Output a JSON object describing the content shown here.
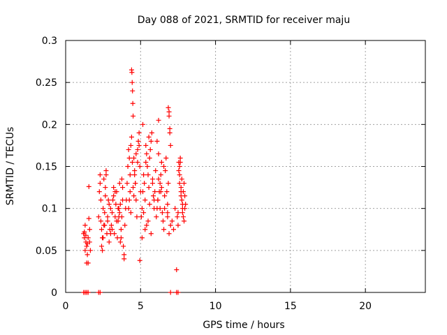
{
  "chart_data": {
    "type": "scatter",
    "title": "Day 088 of 2021, SRMTID for receiver maju",
    "xlabel": "GPS time / hours",
    "ylabel": "SRMTID / TECUs",
    "xlim": [
      0,
      24
    ],
    "ylim": [
      0,
      0.3
    ],
    "xticks": [
      0,
      5,
      10,
      15,
      20
    ],
    "xtick_labels": [
      "0",
      "5",
      "10",
      "15",
      "20"
    ],
    "yticks": [
      0,
      0.05,
      0.1,
      0.15,
      0.2,
      0.25,
      0.3
    ],
    "ytick_labels": [
      "0",
      "0.05",
      "0.1",
      "0.15",
      "0.2",
      "0.25",
      "0.3"
    ],
    "grid": true,
    "marker": "+",
    "color": "#ff0000",
    "series": [
      {
        "name": "SRMTID",
        "x": [
          1.2,
          1.25,
          1.3,
          1.35,
          1.4,
          1.45,
          1.5,
          1.55,
          1.6,
          1.3,
          1.4,
          1.5,
          1.55,
          1.6,
          1.65,
          1.25,
          1.35,
          1.45,
          2.2,
          2.25,
          2.3,
          2.35,
          2.4,
          2.45,
          2.5,
          2.55,
          2.6,
          2.65,
          2.7,
          2.75,
          2.8,
          2.85,
          2.9,
          2.95,
          3.0,
          2.3,
          2.4,
          2.5,
          2.6,
          2.7,
          2.8,
          2.9,
          3.0,
          2.35,
          2.45,
          2.55,
          2.65,
          3.05,
          3.1,
          3.15,
          3.2,
          3.25,
          3.3,
          3.35,
          3.4,
          3.45,
          3.5,
          3.55,
          3.6,
          3.65,
          3.7,
          3.75,
          3.8,
          3.85,
          3.9,
          3.95,
          4.0,
          3.2,
          3.4,
          3.6,
          3.8,
          3.1,
          3.3,
          3.5,
          3.7,
          3.9,
          3.55,
          3.65,
          3.75,
          4.05,
          4.1,
          4.15,
          4.2,
          4.25,
          4.3,
          4.35,
          4.4,
          4.45,
          4.5,
          4.55,
          4.6,
          4.65,
          4.7,
          4.75,
          4.8,
          4.85,
          4.9,
          4.95,
          5.0,
          4.4,
          4.42,
          4.44,
          4.46,
          4.48,
          4.5,
          4.2,
          4.3,
          4.6,
          4.7,
          4.8,
          4.9,
          4.25,
          4.35,
          4.55,
          4.65,
          5.05,
          5.1,
          5.15,
          5.2,
          5.25,
          5.3,
          5.35,
          5.4,
          5.45,
          5.5,
          5.55,
          5.6,
          5.65,
          5.7,
          5.75,
          5.8,
          5.85,
          5.9,
          5.95,
          6.0,
          5.1,
          5.3,
          5.5,
          5.7,
          5.9,
          5.2,
          5.4,
          5.6,
          5.8,
          4.95,
          5.15,
          5.35,
          5.55,
          6.05,
          6.1,
          6.15,
          6.2,
          6.25,
          6.3,
          6.35,
          6.4,
          6.45,
          6.5,
          6.55,
          6.6,
          6.65,
          6.7,
          6.75,
          6.8,
          6.85,
          6.9,
          6.95,
          7.0,
          6.1,
          6.2,
          6.3,
          6.85,
          6.9,
          6.95,
          6.8,
          6.9,
          7.0,
          6.2,
          6.4,
          6.6,
          6.8,
          6.15,
          6.35,
          6.55,
          7.1,
          7.2,
          7.3,
          7.4,
          7.5,
          7.55,
          7.6,
          7.65,
          7.7,
          7.75,
          7.8,
          7.85,
          7.9,
          7.95,
          8.0,
          7.6,
          7.7,
          7.8,
          7.9,
          7.55,
          7.65,
          7.75,
          7.85,
          7.95,
          7.5,
          7.6,
          7.7,
          7.8,
          7.45,
          1.2,
          1.3,
          1.4,
          1.5,
          2.2,
          2.3,
          7.0,
          7.4,
          7.5
        ],
        "y": [
          0.07,
          0.065,
          0.08,
          0.06,
          0.055,
          0.045,
          0.065,
          0.088,
          0.075,
          0.05,
          0.035,
          0.035,
          0.126,
          0.06,
          0.05,
          0.072,
          0.068,
          0.058,
          0.09,
          0.12,
          0.13,
          0.11,
          0.075,
          0.065,
          0.1,
          0.08,
          0.095,
          0.125,
          0.14,
          0.07,
          0.085,
          0.11,
          0.06,
          0.075,
          0.1,
          0.14,
          0.055,
          0.065,
          0.08,
          0.145,
          0.09,
          0.105,
          0.07,
          0.085,
          0.05,
          0.135,
          0.115,
          0.08,
          0.095,
          0.11,
          0.125,
          0.07,
          0.09,
          0.105,
          0.12,
          0.065,
          0.085,
          0.1,
          0.13,
          0.06,
          0.075,
          0.09,
          0.11,
          0.055,
          0.045,
          0.08,
          0.1,
          0.115,
          0.085,
          0.095,
          0.125,
          0.075,
          0.12,
          0.1,
          0.065,
          0.04,
          0.09,
          0.105,
          0.135,
          0.11,
          0.13,
          0.15,
          0.17,
          0.16,
          0.14,
          0.175,
          0.185,
          0.155,
          0.125,
          0.16,
          0.145,
          0.13,
          0.11,
          0.09,
          0.17,
          0.18,
          0.19,
          0.15,
          0.12,
          0.265,
          0.262,
          0.25,
          0.24,
          0.225,
          0.21,
          0.1,
          0.12,
          0.14,
          0.165,
          0.155,
          0.175,
          0.11,
          0.095,
          0.115,
          0.13,
          0.09,
          0.1,
          0.12,
          0.14,
          0.13,
          0.11,
          0.155,
          0.165,
          0.15,
          0.14,
          0.125,
          0.16,
          0.17,
          0.18,
          0.19,
          0.135,
          0.115,
          0.1,
          0.12,
          0.145,
          0.065,
          0.075,
          0.085,
          0.07,
          0.11,
          0.095,
          0.08,
          0.105,
          0.13,
          0.038,
          0.2,
          0.175,
          0.185,
          0.09,
          0.1,
          0.11,
          0.205,
          0.12,
          0.13,
          0.14,
          0.155,
          0.095,
          0.085,
          0.075,
          0.115,
          0.145,
          0.16,
          0.12,
          0.105,
          0.22,
          0.215,
          0.19,
          0.175,
          0.18,
          0.165,
          0.1,
          0.13,
          0.21,
          0.195,
          0.09,
          0.07,
          0.08,
          0.135,
          0.125,
          0.1,
          0.095,
          0.11,
          0.12,
          0.15,
          0.085,
          0.075,
          0.1,
          0.027,
          0.08,
          0.145,
          0.15,
          0.155,
          0.12,
          0.11,
          0.1,
          0.09,
          0.13,
          0.115,
          0.105,
          0.14,
          0.125,
          0.095,
          0.085,
          0.155,
          0.16,
          0.135,
          0.12,
          0.1,
          0.095,
          0.13,
          0.115,
          0.105,
          0.09,
          0,
          0,
          0,
          0,
          0,
          0,
          0,
          0,
          0
        ]
      }
    ]
  }
}
